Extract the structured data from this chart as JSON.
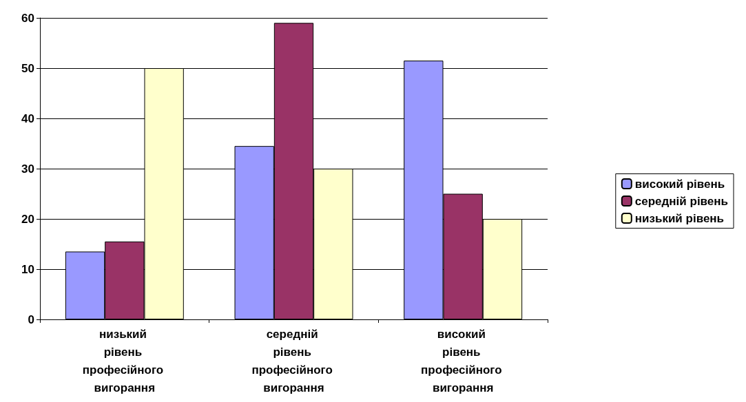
{
  "chart_data": {
    "type": "bar",
    "categories": [
      "низький рівень професійного вигорання",
      "середній рівень професійного вигорання",
      "високий рівень професійного вигорання"
    ],
    "series": [
      {
        "name": "високий рівень",
        "color": "#9999ff",
        "values": [
          13.5,
          34.5,
          51.5
        ]
      },
      {
        "name": "середній рівень",
        "color": "#993366",
        "values": [
          15.5,
          59,
          25
        ]
      },
      {
        "name": "низький рівень",
        "color": "#ffffcc",
        "values": [
          50,
          30,
          20
        ]
      }
    ],
    "ylim": [
      0,
      60
    ],
    "yticks": [
      0,
      10,
      20,
      30,
      40,
      50,
      60
    ],
    "grid": "y",
    "legend": "right"
  }
}
